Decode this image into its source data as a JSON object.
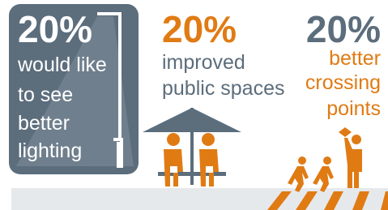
{
  "panels": [
    {
      "stat": "20%",
      "lines": [
        "would like",
        "to see",
        "better",
        "lighting"
      ]
    },
    {
      "stat": "20%",
      "lines": [
        "improved",
        "public spaces"
      ]
    },
    {
      "stat": "20%",
      "lines": [
        "better",
        "crossing",
        "points"
      ]
    }
  ]
}
